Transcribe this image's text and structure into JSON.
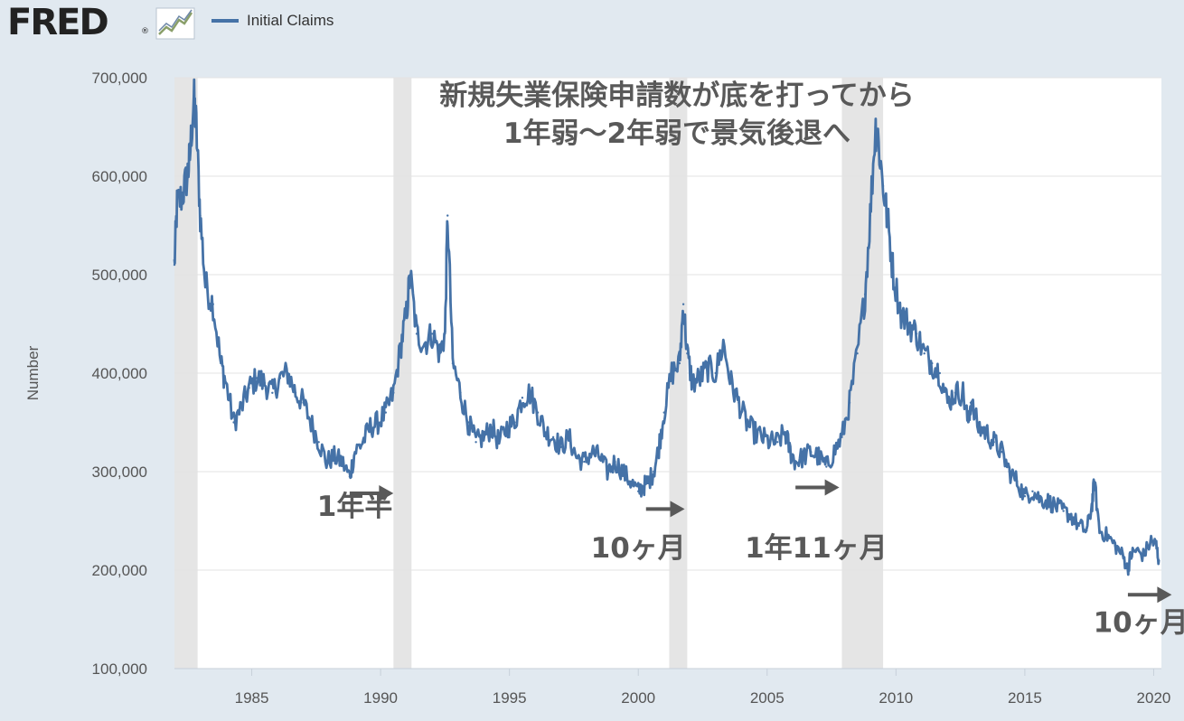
{
  "header": {
    "logo_text": "FRED",
    "logo_reg": "®",
    "logo_icon": "line-chart-icon",
    "legend_label": "Initial Claims"
  },
  "colors": {
    "series": "#4572a7",
    "recession": "#e5e5e5",
    "annotation": "#595959",
    "background": "#e1e9f0",
    "plot_background": "#ffffff"
  },
  "chart_data": {
    "type": "line",
    "title": "",
    "xlabel": "",
    "ylabel": "Number",
    "xlim": [
      1982.0,
      2020.3
    ],
    "ylim": [
      100000,
      700000
    ],
    "x_ticks": [
      "1985",
      "1990",
      "1995",
      "2000",
      "2005",
      "2010",
      "2015",
      "2020"
    ],
    "y_ticks": [
      "100,000",
      "200,000",
      "300,000",
      "400,000",
      "500,000",
      "600,000",
      "700,000"
    ],
    "grid": true,
    "legend": "top-left",
    "recessions": [
      [
        1982.0,
        1982.9
      ],
      [
        1990.5,
        1991.2
      ],
      [
        2001.2,
        2001.9
      ],
      [
        2007.9,
        2009.5
      ]
    ],
    "series": [
      {
        "name": "Initial Claims",
        "x": [
          1982.0,
          1982.1,
          1982.3,
          1982.5,
          1982.6,
          1982.75,
          1982.85,
          1983.0,
          1983.2,
          1983.5,
          1983.8,
          1984.0,
          1984.3,
          1984.6,
          1984.9,
          1985.2,
          1985.5,
          1985.8,
          1986.1,
          1986.4,
          1986.7,
          1987.0,
          1987.3,
          1987.6,
          1987.9,
          1988.2,
          1988.5,
          1988.8,
          1989.0,
          1989.3,
          1989.6,
          1989.9,
          1990.2,
          1990.5,
          1990.8,
          1991.0,
          1991.15,
          1991.4,
          1991.7,
          1992.0,
          1992.3,
          1992.5,
          1992.6,
          1992.8,
          1993.1,
          1993.4,
          1993.7,
          1994.0,
          1994.3,
          1994.6,
          1994.9,
          1995.2,
          1995.5,
          1995.8,
          1996.1,
          1996.4,
          1996.7,
          1997.0,
          1997.3,
          1997.6,
          1997.9,
          1998.2,
          1998.5,
          1998.8,
          1999.1,
          1999.4,
          1999.7,
          2000.0,
          2000.2,
          2000.4,
          2000.6,
          2000.8,
          2001.0,
          2001.3,
          2001.6,
          2001.75,
          2001.9,
          2002.1,
          2002.4,
          2002.7,
          2003.0,
          2003.3,
          2003.6,
          2003.9,
          2004.2,
          2004.5,
          2004.8,
          2005.1,
          2005.4,
          2005.7,
          2005.9,
          2006.1,
          2006.4,
          2006.7,
          2007.0,
          2007.3,
          2007.6,
          2007.9,
          2008.2,
          2008.5,
          2008.8,
          2009.0,
          2009.2,
          2009.3,
          2009.5,
          2009.7,
          2009.9,
          2010.2,
          2010.5,
          2010.8,
          2011.1,
          2011.4,
          2011.7,
          2012.0,
          2012.3,
          2012.6,
          2012.8,
          2012.9,
          2013.2,
          2013.5,
          2013.8,
          2014.1,
          2014.4,
          2014.7,
          2015.0,
          2015.3,
          2015.6,
          2015.9,
          2016.2,
          2016.5,
          2016.8,
          2017.1,
          2017.4,
          2017.6,
          2017.7,
          2017.9,
          2018.2,
          2018.5,
          2018.8,
          2019.0,
          2019.1,
          2019.3,
          2019.6,
          2019.9,
          2020.1,
          2020.2
        ],
        "values": [
          510000,
          570000,
          580000,
          600000,
          620000,
          680000,
          650000,
          560000,
          490000,
          470000,
          410000,
          390000,
          350000,
          365000,
          385000,
          395000,
          390000,
          380000,
          395000,
          400000,
          380000,
          370000,
          350000,
          330000,
          310000,
          315000,
          310000,
          295000,
          320000,
          330000,
          345000,
          350000,
          360000,
          380000,
          430000,
          460000,
          500000,
          440000,
          430000,
          440000,
          420000,
          440000,
          560000,
          410000,
          380000,
          350000,
          330000,
          335000,
          345000,
          330000,
          345000,
          350000,
          375000,
          380000,
          360000,
          340000,
          335000,
          325000,
          335000,
          315000,
          310000,
          320000,
          315000,
          300000,
          310000,
          300000,
          290000,
          280000,
          285000,
          290000,
          300000,
          325000,
          360000,
          400000,
          410000,
          470000,
          420000,
          390000,
          395000,
          405000,
          400000,
          430000,
          390000,
          370000,
          350000,
          340000,
          335000,
          330000,
          330000,
          340000,
          320000,
          310000,
          315000,
          320000,
          315000,
          305000,
          320000,
          335000,
          370000,
          420000,
          480000,
          560000,
          650000,
          640000,
          590000,
          550000,
          500000,
          460000,
          450000,
          440000,
          420000,
          410000,
          400000,
          370000,
          380000,
          380000,
          350000,
          370000,
          345000,
          340000,
          330000,
          320000,
          300000,
          290000,
          275000,
          280000,
          272000,
          270000,
          265000,
          260000,
          255000,
          245000,
          240000,
          265000,
          290000,
          240000,
          235000,
          225000,
          215000,
          200000,
          215000,
          220000,
          215000,
          230000,
          225000,
          210000
        ]
      }
    ],
    "annotations": [
      {
        "text": "新規失業保険申請数が底を打ってから",
        "kind": "title-line-1"
      },
      {
        "text": "1年弱〜2年弱で景気後退へ",
        "kind": "title-line-2"
      },
      {
        "text": "1年半",
        "kind": "label",
        "x": 1989.0,
        "y": 255000
      },
      {
        "text": "10ヶ月",
        "kind": "label",
        "x": 2000.0,
        "y": 213000
      },
      {
        "text": "1年11ヶ月",
        "kind": "label",
        "x": 2006.9,
        "y": 213000
      },
      {
        "text": "10ヶ月",
        "kind": "label",
        "x": 2019.5,
        "y": 137000
      }
    ],
    "arrows": [
      {
        "x1": 1988.8,
        "x2": 1990.5,
        "y": 278000
      },
      {
        "x1": 2000.3,
        "x2": 2001.8,
        "y": 262000
      },
      {
        "x1": 2006.1,
        "x2": 2007.8,
        "y": 284000
      },
      {
        "x1": 2019.0,
        "x2": 2020.7,
        "y": 175000
      }
    ]
  }
}
